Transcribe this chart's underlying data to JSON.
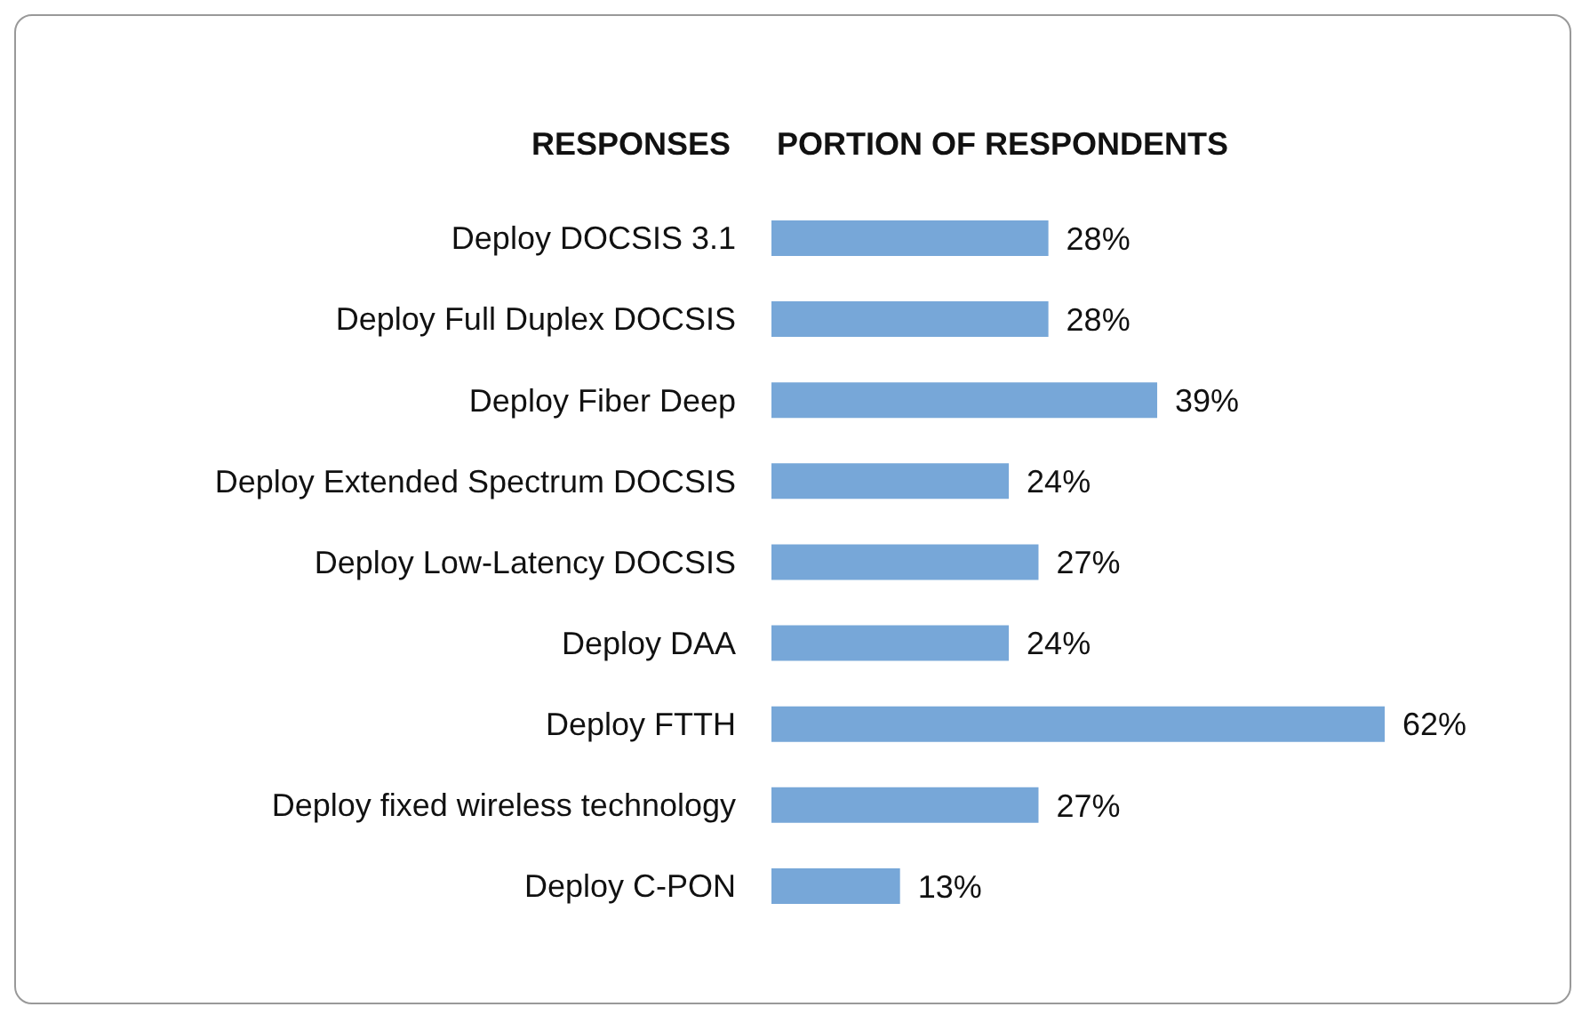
{
  "chart_data": {
    "type": "bar",
    "orientation": "horizontal",
    "ylabel": "RESPONSES",
    "xlabel": "PORTION OF RESPONDENTS",
    "categories": [
      "Deploy DOCSIS 3.1",
      "Deploy Full Duplex DOCSIS",
      "Deploy Fiber Deep",
      "Deploy Extended Spectrum DOCSIS",
      "Deploy Low-Latency DOCSIS",
      "Deploy DAA",
      "Deploy FTTH",
      "Deploy fixed wireless technology",
      "Deploy C-PON"
    ],
    "values": [
      28,
      28,
      39,
      24,
      27,
      24,
      62,
      27,
      13
    ],
    "value_labels": [
      "28%",
      "28%",
      "39%",
      "24%",
      "27%",
      "24%",
      "62%",
      "27%",
      "13%"
    ],
    "color": "#77a7d8",
    "grid": false
  }
}
